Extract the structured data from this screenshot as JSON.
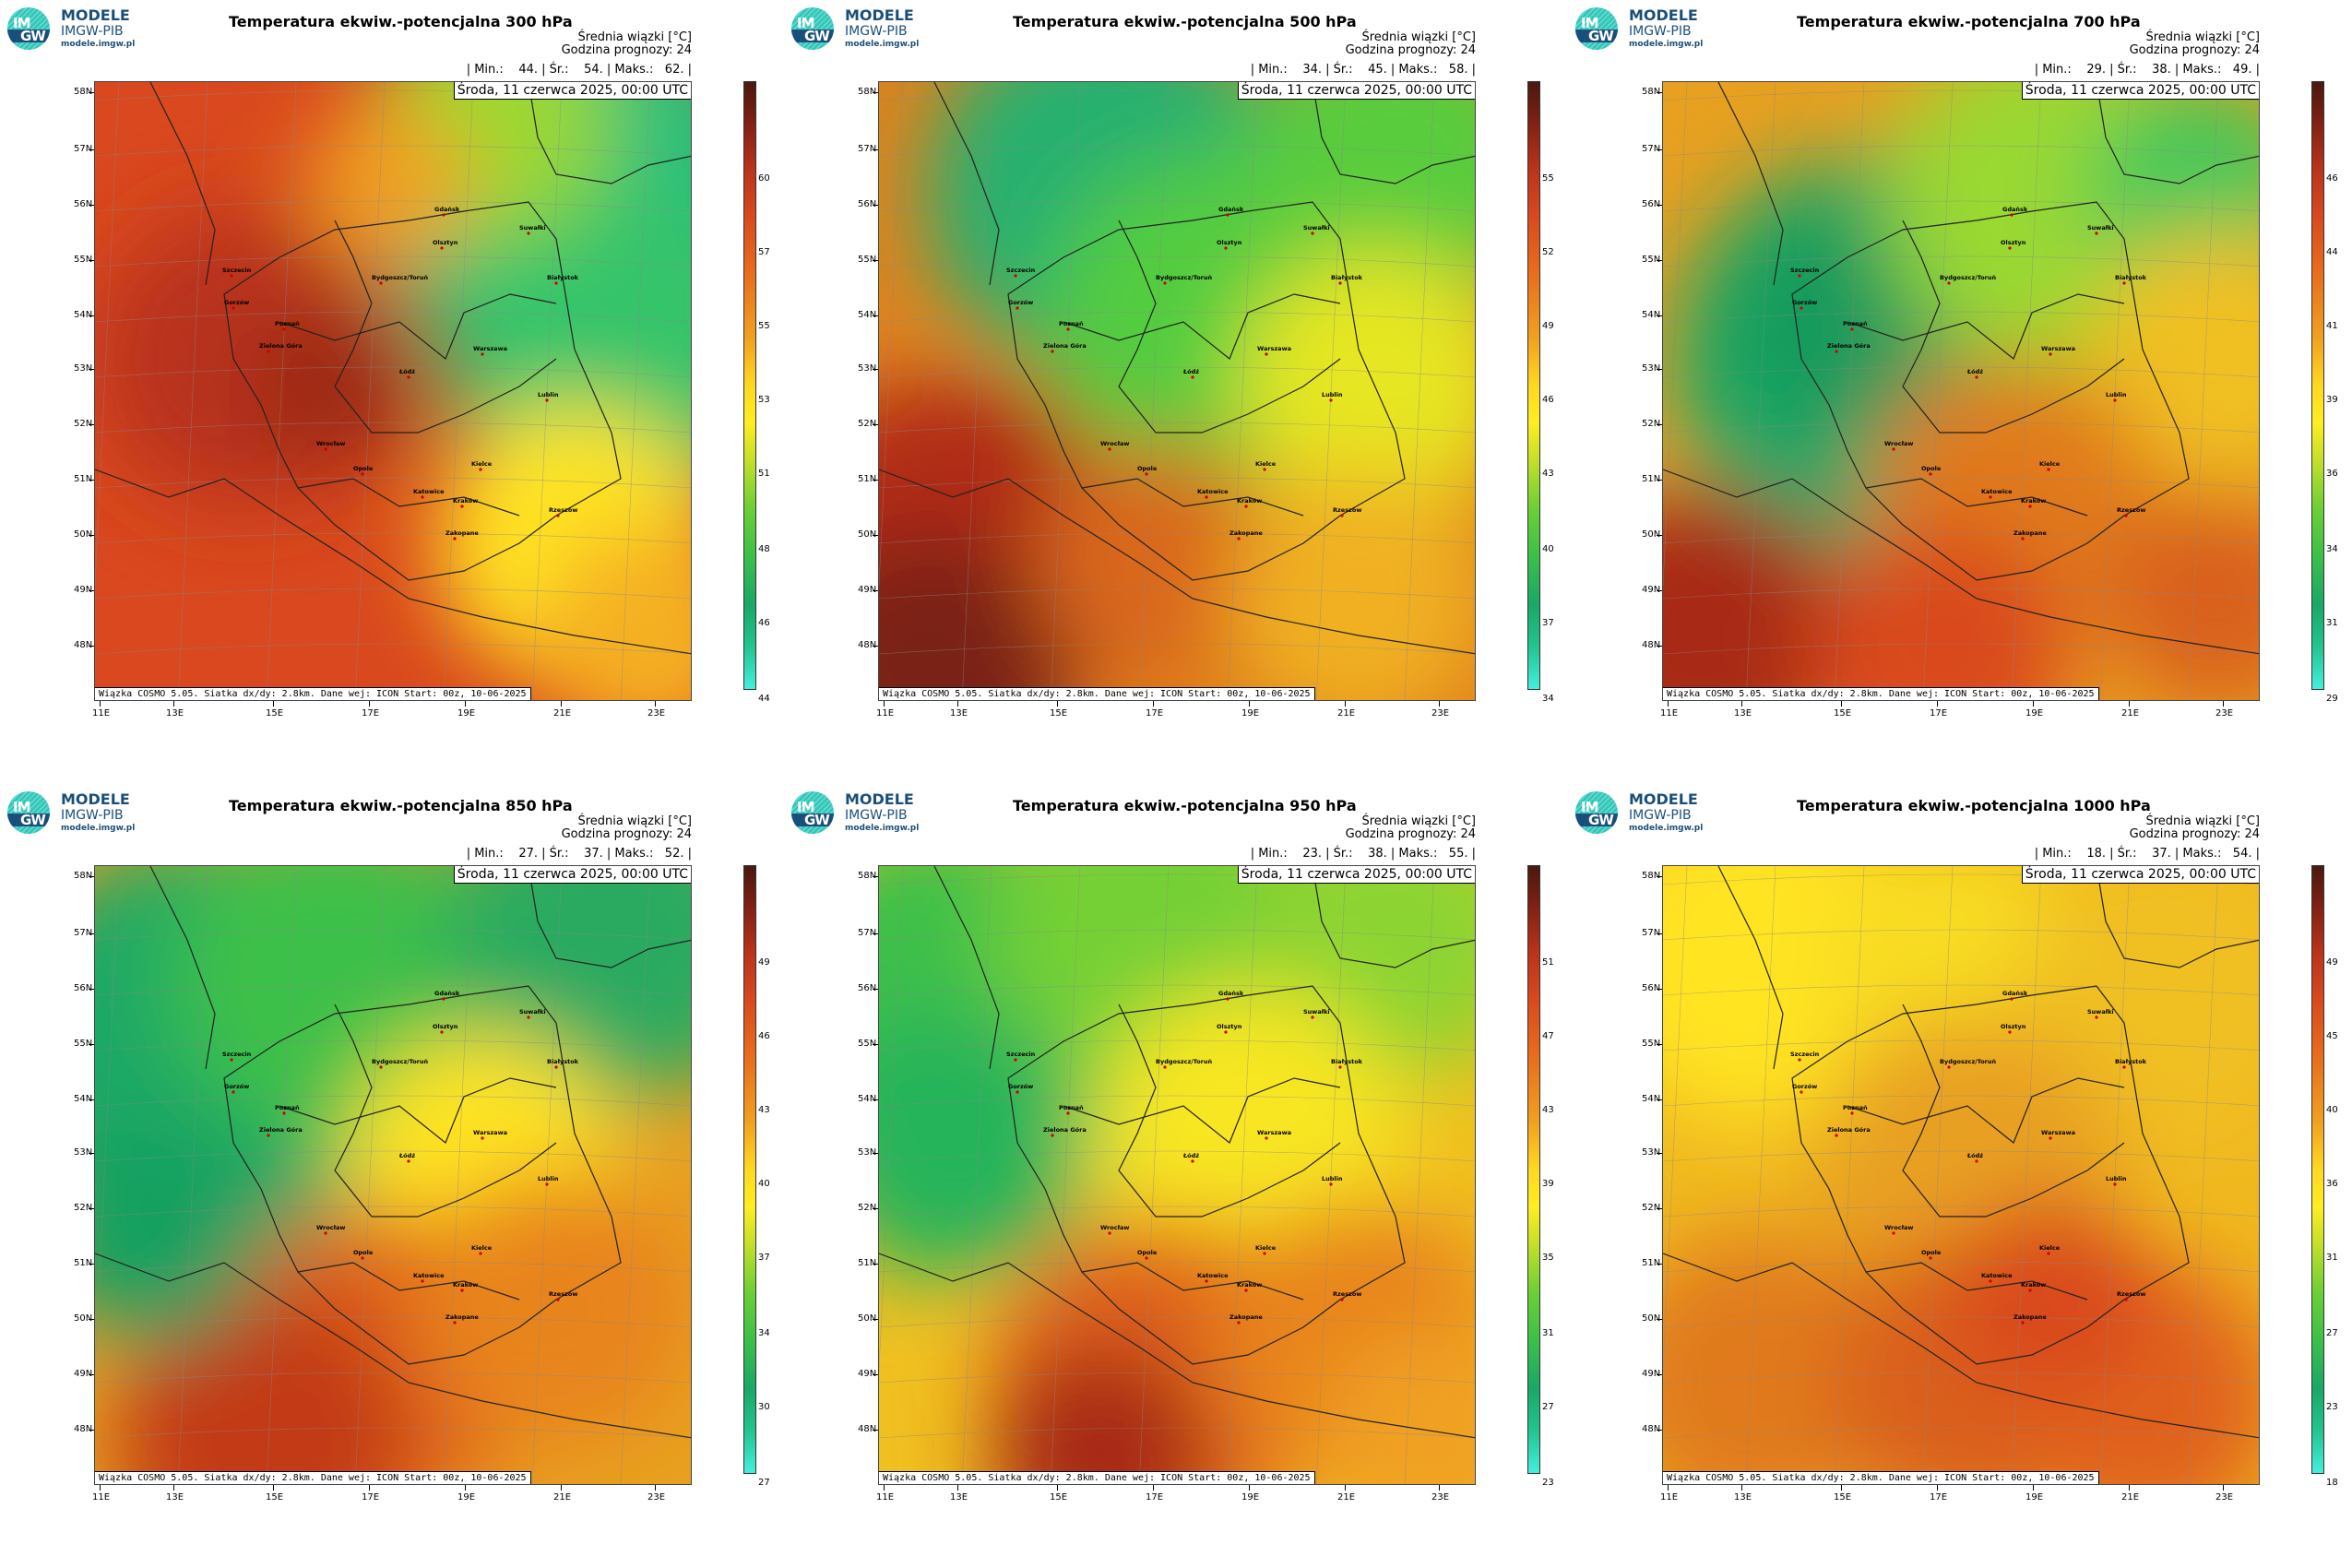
{
  "logo": {
    "line1": "MODELE",
    "line2": "IMGW-PIB",
    "line3": "modele.imgw.pl",
    "circle_top": "IM",
    "circle_bottom": "GW",
    "color": "#1b4f7a",
    "accent": "#2ec4b6"
  },
  "common": {
    "unit_line": "Średnia wiązki [°C]",
    "forecast_hour": "Godzina prognozy: 24",
    "date": "Środa, 11 czerwca 2025, 00:00 UTC",
    "footer": "Wiązka COSMO 5.05. Siatka dx/dy: 2.8km. Dane wej: ICON Start: 00z, 10-06-2025",
    "lat_labels": [
      "58N",
      "57N",
      "56N",
      "55N",
      "54N",
      "53N",
      "52N",
      "51N",
      "50N",
      "49N",
      "48N"
    ],
    "lon_labels": [
      "11E",
      "13E",
      "15E",
      "17E",
      "19E",
      "21E",
      "23E"
    ]
  },
  "panels": [
    {
      "title": "Temperatura ekwiw.-potencjalna 300 hPa",
      "stats": "| Min.:    44. | Śr.:    54. | Maks.:   62. |",
      "cbar_labels": [
        "60",
        "57",
        "55",
        "53",
        "51",
        "48",
        "46",
        "44"
      ],
      "scheme": "p300"
    },
    {
      "title": "Temperatura ekwiw.-potencjalna 500 hPa",
      "stats": "| Min.:    34. | Śr.:    45. | Maks.:   58. |",
      "cbar_labels": [
        "55",
        "52",
        "49",
        "46",
        "43",
        "40",
        "37",
        "34"
      ],
      "scheme": "p500"
    },
    {
      "title": "Temperatura ekwiw.-potencjalna 700 hPa",
      "stats": "| Min.:    29. | Śr.:    38. | Maks.:   49. |",
      "cbar_labels": [
        "46",
        "44",
        "41",
        "39",
        "36",
        "34",
        "31",
        "29"
      ],
      "scheme": "p700"
    },
    {
      "title": "Temperatura ekwiw.-potencjalna 850 hPa",
      "stats": "| Min.:    27. | Śr.:    37. | Maks.:   52. |",
      "cbar_labels": [
        "49",
        "46",
        "43",
        "40",
        "37",
        "34",
        "30",
        "27"
      ],
      "scheme": "p850"
    },
    {
      "title": "Temperatura ekwiw.-potencjalna 950 hPa",
      "stats": "| Min.:    23. | Śr.:    38. | Maks.:   55. |",
      "cbar_labels": [
        "51",
        "47",
        "43",
        "39",
        "35",
        "31",
        "27",
        "23"
      ],
      "scheme": "p950"
    },
    {
      "title": "Temperatura ekwiw.-potencjalna 1000 hPa",
      "stats": "| Min.:    18. | Śr.:    37. | Maks.:   54. |",
      "cbar_labels": [
        "49",
        "45",
        "40",
        "36",
        "31",
        "27",
        "23",
        "18"
      ],
      "scheme": "p1000"
    }
  ],
  "cities": [
    "Gdańsk",
    "Olsztyn",
    "Suwałki",
    "Białystok",
    "Szczecin",
    "Bydgoszcz/Toruń",
    "Gorzów",
    "Poznań",
    "Warszawa",
    "Zielona Góra",
    "Łódź",
    "Lublin",
    "Wrocław",
    "Opole",
    "Kielce",
    "Katowice",
    "Kraków",
    "Rzeszów",
    "Zakopane"
  ],
  "colors": {
    "dark_red": "#7a2014",
    "red": "#d9481e",
    "orange": "#f08c1e",
    "yellow": "#ffee22",
    "green": "#3ccc3c",
    "teal": "#1aa866",
    "cyan": "#44eedd"
  }
}
